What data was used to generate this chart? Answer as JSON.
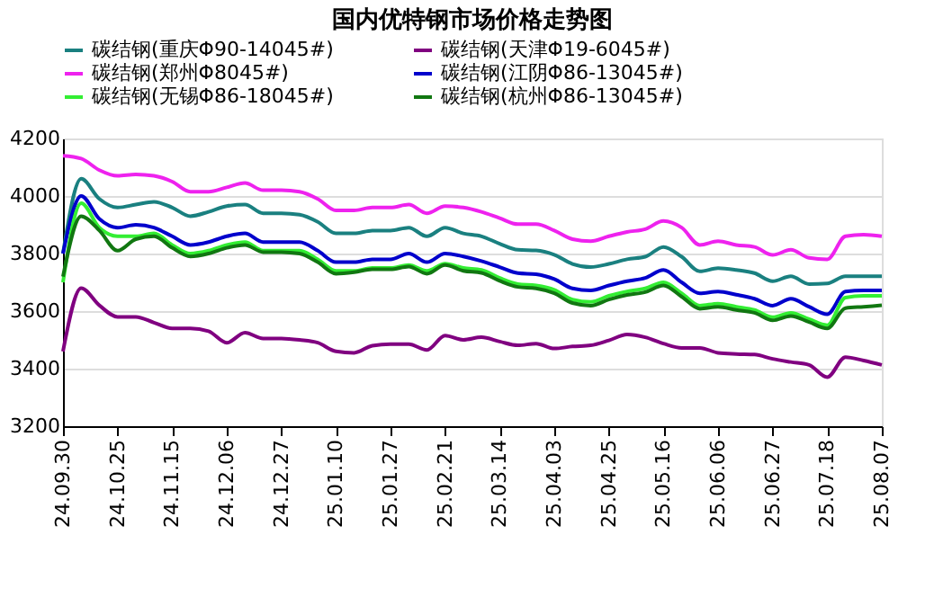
{
  "chart_data": {
    "type": "line",
    "title": "国内优特钢市场价格走势图",
    "categories": [
      "24.09.30",
      null,
      null,
      "24.10.25",
      null,
      null,
      "24.11.15",
      null,
      null,
      "24.12.06",
      null,
      null,
      "24.12.27",
      null,
      null,
      "25.01.10",
      null,
      null,
      "25.01.27",
      null,
      null,
      "25.02.21",
      null,
      null,
      "25.03.14",
      null,
      null,
      "25.04.03",
      null,
      null,
      "25.04.25",
      null,
      null,
      "25.05.16",
      null,
      null,
      "25.06.06",
      null,
      null,
      "25.06.27",
      null,
      null,
      "25.07.18",
      null,
      null,
      "25.08.07"
    ],
    "series": [
      {
        "name": "碳结钢(重庆Φ90-14045#)",
        "color": "#1a8080",
        "values": [
          3800,
          4060,
          3990,
          3960,
          3970,
          3980,
          3960,
          3930,
          3945,
          3965,
          3970,
          3940,
          3940,
          3935,
          3910,
          3870,
          3870,
          3880,
          3880,
          3890,
          3860,
          3890,
          3870,
          3860,
          3834,
          3813,
          3811,
          3796,
          3764,
          3753,
          3764,
          3780,
          3789,
          3823,
          3789,
          3738,
          3749,
          3743,
          3732,
          3704,
          3721,
          3694,
          3696,
          3721,
          3721,
          3721
        ]
      },
      {
        "name": "碳结钢(天津Φ19-6045#)",
        "color": "#800080",
        "values": [
          3460,
          3680,
          3620,
          3580,
          3580,
          3560,
          3540,
          3540,
          3530,
          3490,
          3525,
          3505,
          3505,
          3500,
          3490,
          3460,
          3455,
          3480,
          3485,
          3485,
          3465,
          3515,
          3500,
          3509,
          3494,
          3481,
          3487,
          3470,
          3477,
          3481,
          3498,
          3519,
          3509,
          3487,
          3472,
          3472,
          3455,
          3451,
          3449,
          3434,
          3423,
          3413,
          3370,
          3440,
          3428,
          3413
        ]
      },
      {
        "name": "碳结钢(郑州Φ8045#)",
        "color": "#ee22ee",
        "values": [
          4140,
          4130,
          4090,
          4070,
          4075,
          4070,
          4050,
          4015,
          4015,
          4030,
          4045,
          4020,
          4020,
          4015,
          3990,
          3950,
          3950,
          3960,
          3960,
          3970,
          3940,
          3965,
          3960,
          3945,
          3923,
          3902,
          3902,
          3880,
          3850,
          3843,
          3860,
          3875,
          3885,
          3913,
          3890,
          3830,
          3843,
          3830,
          3823,
          3795,
          3813,
          3785,
          3780,
          3860,
          3866,
          3860
        ]
      },
      {
        "name": "碳结钢(江阴Φ86-13045#)",
        "color": "#0000cc",
        "values": [
          3800,
          4000,
          3920,
          3890,
          3900,
          3890,
          3860,
          3830,
          3840,
          3860,
          3870,
          3840,
          3840,
          3840,
          3810,
          3770,
          3770,
          3780,
          3780,
          3800,
          3770,
          3800,
          3790,
          3774,
          3753,
          3732,
          3728,
          3711,
          3679,
          3672,
          3689,
          3704,
          3715,
          3743,
          3700,
          3662,
          3668,
          3657,
          3643,
          3619,
          3643,
          3615,
          3589,
          3668,
          3672,
          3672
        ]
      },
      {
        "name": "碳结钢(无锡Φ86-18045#)",
        "color": "#33ee33",
        "values": [
          3700,
          3975,
          3890,
          3860,
          3860,
          3870,
          3830,
          3800,
          3810,
          3830,
          3840,
          3810,
          3810,
          3810,
          3780,
          3740,
          3740,
          3750,
          3750,
          3760,
          3740,
          3765,
          3750,
          3743,
          3715,
          3694,
          3689,
          3674,
          3640,
          3632,
          3653,
          3668,
          3679,
          3700,
          3662,
          3619,
          3626,
          3615,
          3604,
          3579,
          3594,
          3572,
          3551,
          3647,
          3653,
          3653
        ]
      },
      {
        "name": "碳结钢(杭州Φ86-13045#)",
        "color": "#117711",
        "values": [
          3720,
          3930,
          3880,
          3810,
          3850,
          3860,
          3820,
          3790,
          3800,
          3820,
          3830,
          3805,
          3805,
          3800,
          3770,
          3730,
          3735,
          3745,
          3745,
          3755,
          3730,
          3760,
          3740,
          3733,
          3705,
          3684,
          3679,
          3662,
          3628,
          3619,
          3640,
          3656,
          3666,
          3689,
          3650,
          3608,
          3615,
          3604,
          3594,
          3568,
          3583,
          3562,
          3540,
          3610,
          3615,
          3620
        ]
      }
    ],
    "ylim": [
      3200,
      4200
    ],
    "yticks": [
      3200,
      3400,
      3600,
      3800,
      4000,
      4200
    ],
    "grid": "y",
    "legend": "top",
    "line_style": "solid",
    "marker": "none"
  }
}
